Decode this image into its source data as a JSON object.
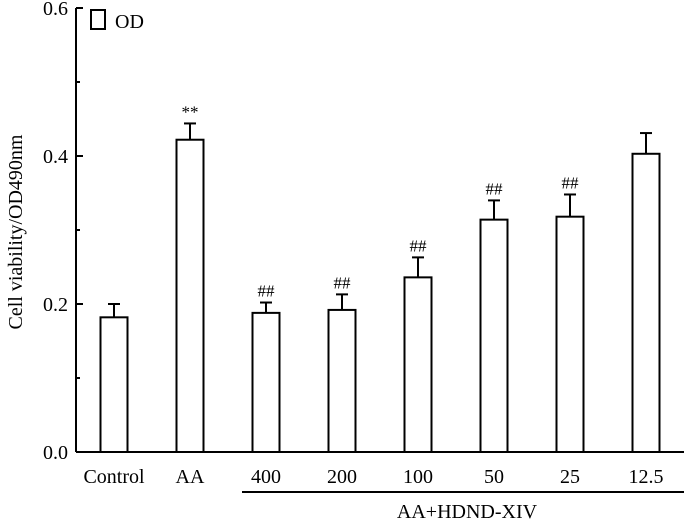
{
  "chart_data": {
    "type": "bar",
    "categories": [
      "Control",
      "AA",
      "400",
      "200",
      "100",
      "50",
      "25",
      "12.5"
    ],
    "series": [
      {
        "name": "OD",
        "values": [
          0.182,
          0.422,
          0.188,
          0.192,
          0.236,
          0.314,
          0.318,
          0.403
        ],
        "errors": [
          0.018,
          0.022,
          0.014,
          0.021,
          0.027,
          0.026,
          0.03,
          0.028
        ]
      }
    ],
    "annotations": [
      "",
      "**",
      "##",
      "##",
      "##",
      "##",
      "##",
      ""
    ],
    "ylabel": "Cell viability/OD490nm",
    "ylim": [
      0,
      0.6
    ],
    "yticks": [
      "0.0",
      "0.2",
      "0.4",
      "0.6"
    ],
    "group_label": "AA+HDND-XIV",
    "group_categories": [
      "400",
      "200",
      "100",
      "50",
      "25",
      "12.5"
    ],
    "legend": {
      "position": "top-left",
      "entries": [
        "OD"
      ]
    },
    "grid": false
  }
}
